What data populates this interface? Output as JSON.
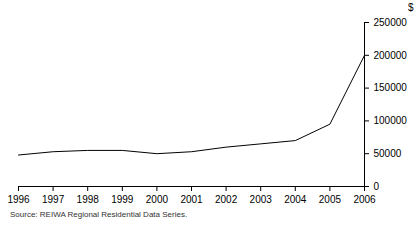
{
  "chart_data": {
    "type": "line",
    "x": [
      1996,
      1997,
      1998,
      1999,
      2000,
      2001,
      2002,
      2003,
      2004,
      2005,
      2006
    ],
    "values": [
      48000,
      53000,
      55000,
      55000,
      50000,
      53000,
      60000,
      65000,
      70000,
      95000,
      200000
    ],
    "color": "#000000",
    "ylabel": "$",
    "xlim": [
      1996,
      2006
    ],
    "xticks": [
      1996,
      1997,
      1998,
      1999,
      2000,
      2001,
      2002,
      2003,
      2004,
      2005,
      2006
    ],
    "ylim": [
      0,
      250000
    ],
    "yticks": [
      0,
      50000,
      100000,
      150000,
      200000,
      250000
    ],
    "grid": false,
    "caption": "Source: REIWA Regional Residential Data Series."
  }
}
